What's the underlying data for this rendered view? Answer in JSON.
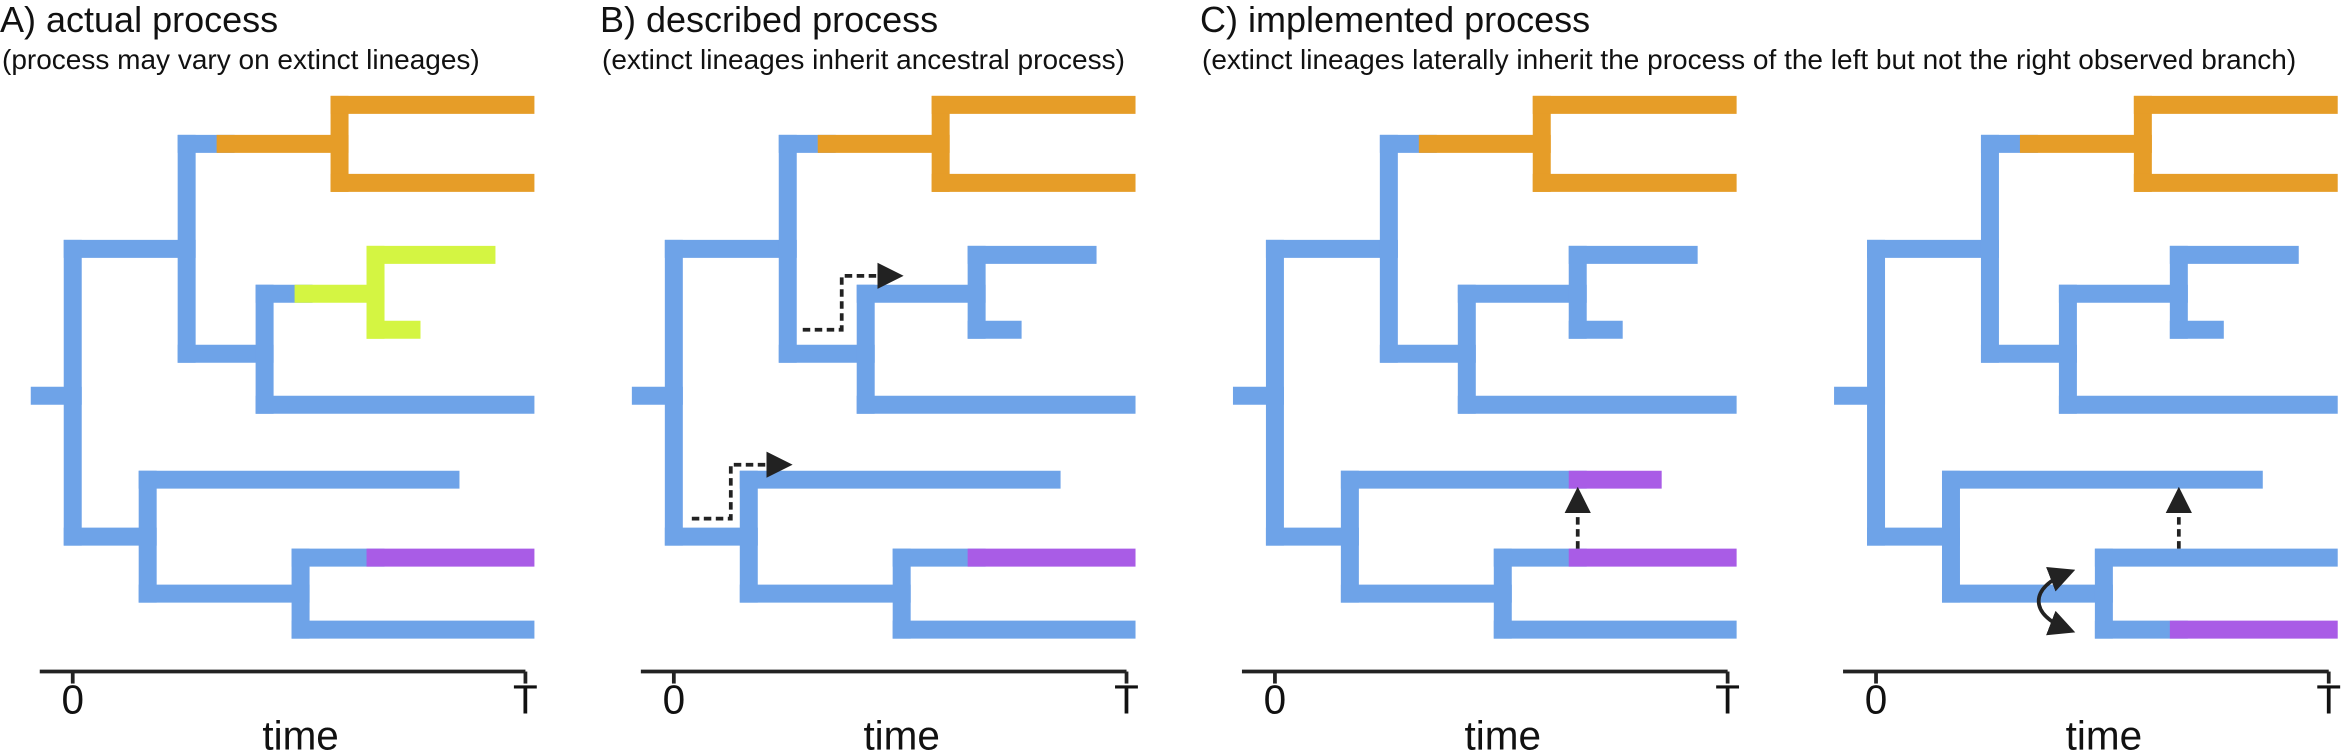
{
  "colors": {
    "blue": "#6ea3e8",
    "orange": "#e69d28",
    "lime": "#d4f542",
    "purple": "#a95ce6",
    "axis": "#222222",
    "arrow": "#222222"
  },
  "panels": [
    {
      "title": "A) actual process",
      "subtitle": "(process may vary on extinct lineages)"
    },
    {
      "title": "B) described process",
      "subtitle": "(extinct lineages inherit ancestral process)"
    },
    {
      "title": "C) implemented process",
      "subtitle": "(extinct lineages laterally inherit the process of the left but not the right observed branch)"
    }
  ],
  "axis": {
    "start_label": "0",
    "end_label": "T",
    "label": "time"
  }
}
